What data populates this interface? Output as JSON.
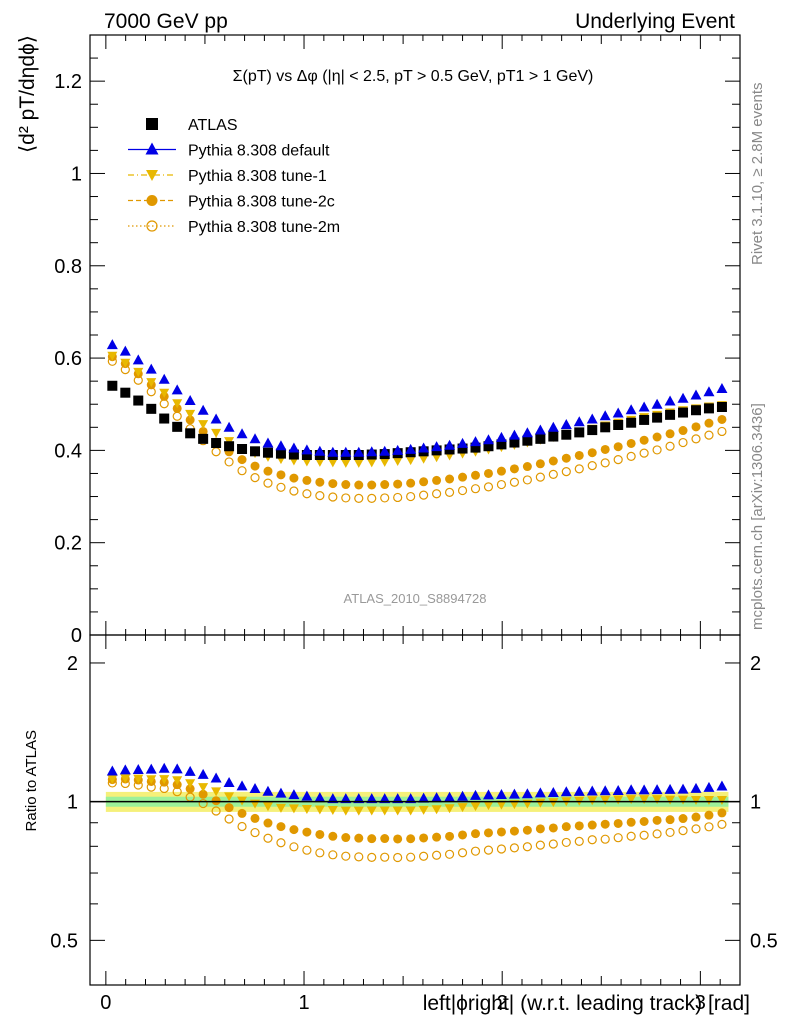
{
  "header": {
    "left_label": "7000 GeV pp",
    "right_label": "Underlying Event"
  },
  "side_labels": {
    "rivet": "Rivet 3.1.10, ≥ 2.8M events",
    "mcplots": "mcplots.cern.ch [arXiv:1306.3436]"
  },
  "chart_data": {
    "type": "scatter",
    "title": "Σ(pT) vs Δφ (|η| < 2.5, pT > 0.5 GeV, pT1 > 1 GeV)",
    "analysis_label": "ATLAS_2010_S8894728",
    "xlabel": "left|ϕright| (w.r.t. leading track) [rad]",
    "xlim": [
      -0.08,
      3.2
    ],
    "x_ticks": [
      0,
      1,
      2,
      3
    ],
    "colors": {
      "atlas": "#000000",
      "default": "#0000e6",
      "tune1": "#e8b800",
      "tune2c": "#e09800",
      "tune2m": "#e09800",
      "band_yellow": "#f5f07a",
      "band_green": "#9cf09a"
    },
    "main_panel": {
      "ylabel": "⟨d² pT/dηdϕ⟩",
      "ylim": [
        0,
        1.3
      ],
      "y_ticks": [
        0,
        0.2,
        0.4,
        0.6,
        0.8,
        1,
        1.2
      ],
      "y_tick_labels": [
        "0",
        "0.2",
        "0.4",
        "0.6",
        "0.8",
        "1",
        "1.2"
      ]
    },
    "ratio_panel": {
      "ylabel": "Ratio to ATLAS",
      "ylim": [
        0.4,
        2.3
      ],
      "y_ticks": [
        0.5,
        1,
        2
      ],
      "y_tick_labels": [
        "0.5",
        "1",
        "2"
      ]
    },
    "legend_position": "top-left",
    "legend": [
      {
        "key": "atlas",
        "label": "ATLAS",
        "marker": "square",
        "line": "none"
      },
      {
        "key": "default",
        "label": "Pythia 8.308 default",
        "marker": "triangle-up",
        "line": "solid"
      },
      {
        "key": "tune1",
        "label": "Pythia 8.308 tune-1",
        "marker": "triangle-down",
        "line": "dashdot"
      },
      {
        "key": "tune2c",
        "label": "Pythia 8.308 tune-2c",
        "marker": "circle",
        "line": "dashed"
      },
      {
        "key": "tune2m",
        "label": "Pythia 8.308 tune-2m",
        "marker": "circle-open",
        "line": "dotted"
      }
    ],
    "x": [
      0.0327,
      0.0982,
      0.1636,
      0.2291,
      0.2945,
      0.36,
      0.4254,
      0.4909,
      0.5563,
      0.6218,
      0.6872,
      0.7527,
      0.8181,
      0.8836,
      0.949,
      1.0145,
      1.0799,
      1.1454,
      1.2108,
      1.2763,
      1.3417,
      1.4072,
      1.4726,
      1.5381,
      1.6035,
      1.669,
      1.7344,
      1.7999,
      1.8653,
      1.9308,
      1.9962,
      2.0617,
      2.1271,
      2.1926,
      2.258,
      2.3235,
      2.3889,
      2.4544,
      2.5198,
      2.5853,
      2.6507,
      2.7162,
      2.7816,
      2.8471,
      2.9125,
      2.978,
      3.0434,
      3.1089
    ],
    "series": [
      {
        "key": "atlas",
        "name": "ATLAS",
        "values": [
          0.54,
          0.525,
          0.508,
          0.49,
          0.469,
          0.451,
          0.437,
          0.425,
          0.416,
          0.409,
          0.403,
          0.398,
          0.395,
          0.393,
          0.391,
          0.39,
          0.39,
          0.39,
          0.39,
          0.39,
          0.391,
          0.392,
          0.394,
          0.396,
          0.398,
          0.4,
          0.402,
          0.404,
          0.406,
          0.409,
          0.413,
          0.417,
          0.421,
          0.425,
          0.43,
          0.434,
          0.439,
          0.444,
          0.45,
          0.455,
          0.46,
          0.466,
          0.471,
          0.477,
          0.482,
          0.487,
          0.491,
          0.494
        ]
      },
      {
        "key": "default",
        "name": "Pythia 8.308 default",
        "values": [
          0.628,
          0.614,
          0.595,
          0.575,
          0.553,
          0.53,
          0.507,
          0.486,
          0.467,
          0.449,
          0.435,
          0.424,
          0.415,
          0.409,
          0.404,
          0.4,
          0.397,
          0.395,
          0.395,
          0.395,
          0.396,
          0.397,
          0.399,
          0.401,
          0.404,
          0.407,
          0.41,
          0.414,
          0.418,
          0.422,
          0.427,
          0.432,
          0.437,
          0.443,
          0.449,
          0.455,
          0.461,
          0.467,
          0.474,
          0.48,
          0.487,
          0.493,
          0.499,
          0.506,
          0.512,
          0.519,
          0.526,
          0.533
        ]
      },
      {
        "key": "tune1",
        "name": "Pythia 8.308 tune-1",
        "values": [
          0.605,
          0.59,
          0.57,
          0.548,
          0.525,
          0.502,
          0.479,
          0.457,
          0.438,
          0.42,
          0.405,
          0.394,
          0.386,
          0.381,
          0.378,
          0.376,
          0.375,
          0.374,
          0.373,
          0.373,
          0.374,
          0.375,
          0.377,
          0.379,
          0.382,
          0.385,
          0.389,
          0.393,
          0.397,
          0.402,
          0.407,
          0.412,
          0.417,
          0.423,
          0.429,
          0.435,
          0.441,
          0.447,
          0.454,
          0.46,
          0.466,
          0.472,
          0.477,
          0.482,
          0.487,
          0.491,
          0.495,
          0.498
        ]
      },
      {
        "key": "tune2c",
        "name": "Pythia 8.308 tune-2c",
        "values": [
          0.603,
          0.588,
          0.566,
          0.542,
          0.517,
          0.491,
          0.466,
          0.441,
          0.418,
          0.397,
          0.38,
          0.366,
          0.355,
          0.347,
          0.34,
          0.335,
          0.331,
          0.328,
          0.326,
          0.325,
          0.325,
          0.326,
          0.327,
          0.329,
          0.332,
          0.335,
          0.338,
          0.342,
          0.346,
          0.35,
          0.355,
          0.36,
          0.365,
          0.371,
          0.377,
          0.383,
          0.389,
          0.395,
          0.402,
          0.408,
          0.415,
          0.422,
          0.429,
          0.436,
          0.443,
          0.451,
          0.459,
          0.467
        ]
      },
      {
        "key": "tune2m",
        "name": "Pythia 8.308 tune-2m",
        "values": [
          0.593,
          0.575,
          0.552,
          0.527,
          0.501,
          0.474,
          0.447,
          0.421,
          0.397,
          0.375,
          0.356,
          0.341,
          0.329,
          0.32,
          0.312,
          0.306,
          0.302,
          0.299,
          0.297,
          0.296,
          0.296,
          0.297,
          0.298,
          0.3,
          0.303,
          0.306,
          0.309,
          0.313,
          0.317,
          0.321,
          0.326,
          0.331,
          0.336,
          0.342,
          0.348,
          0.354,
          0.36,
          0.367,
          0.373,
          0.38,
          0.387,
          0.394,
          0.401,
          0.409,
          0.417,
          0.425,
          0.433,
          0.441
        ]
      }
    ],
    "ratio_band": {
      "yellow_halfwidth": 0.05,
      "green_halfwidth": 0.025
    }
  }
}
